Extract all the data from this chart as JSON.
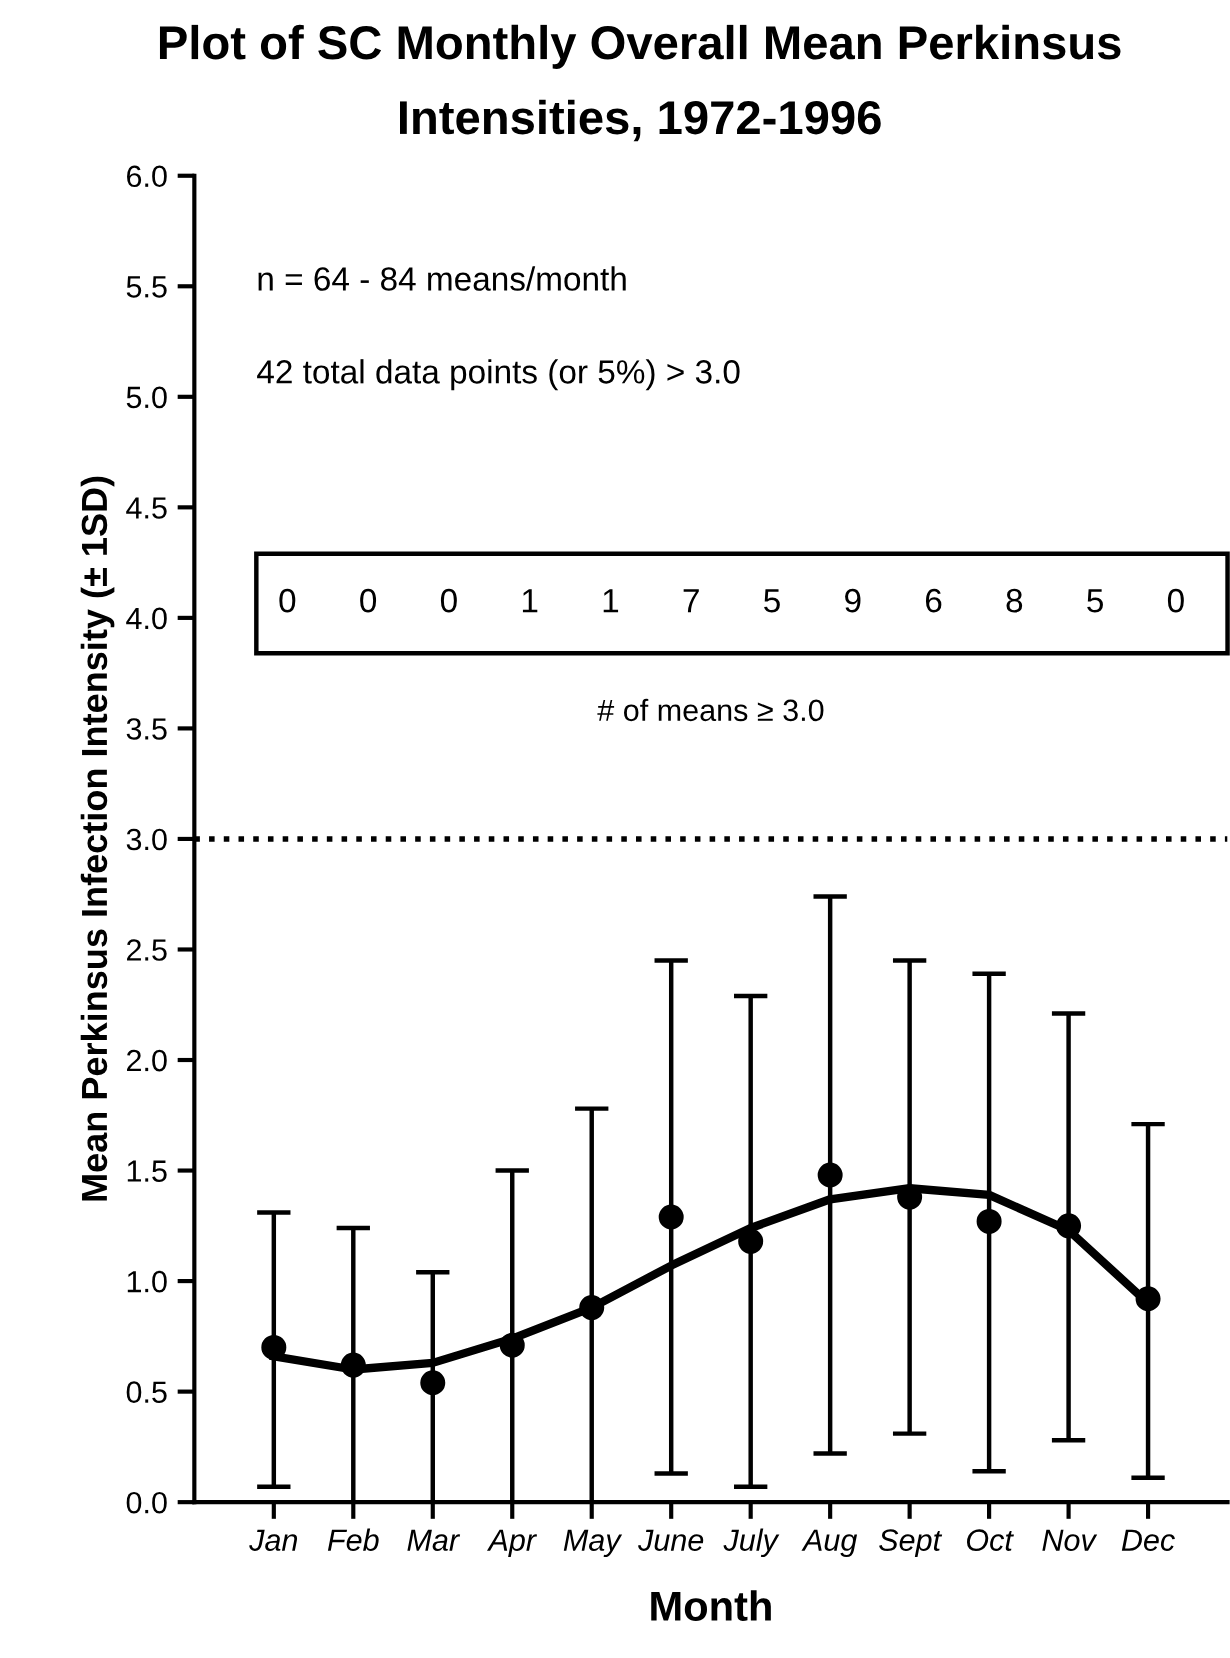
{
  "chart_data": {
    "type": "scatter",
    "title": "Plot of SC Monthly Overall Mean Perkinsus\nIntensities, 1972-1996",
    "xlabel": "Month",
    "ylabel": "Mean Perkinsus Infection Intensity (± 1SD)",
    "categories": [
      "Jan",
      "Feb",
      "Mar",
      "Apr",
      "May",
      "June",
      "July",
      "Aug",
      "Sept",
      "Oct",
      "Nov",
      "Dec"
    ],
    "series": [
      {
        "color": "#000000",
        "marker": "circle",
        "values": [
          0.7,
          0.62,
          0.54,
          0.71,
          0.88,
          1.29,
          1.18,
          1.48,
          1.38,
          1.27,
          1.25,
          0.92
        ],
        "errors": [
          [
            0.07,
            1.31
          ],
          [
            0.0,
            1.24
          ],
          [
            0.0,
            1.04
          ],
          [
            0.0,
            1.5
          ],
          [
            0.0,
            1.78
          ],
          [
            0.13,
            2.45
          ],
          [
            0.07,
            2.29
          ],
          [
            0.22,
            2.74
          ],
          [
            0.31,
            2.45
          ],
          [
            0.14,
            2.39
          ],
          [
            0.28,
            2.21
          ],
          [
            0.11,
            1.71
          ]
        ]
      },
      {
        "type": "line",
        "color": "#000000",
        "marker": "none",
        "line_style": "solid",
        "values": [
          0.66,
          0.6,
          0.63,
          0.74,
          0.88,
          1.07,
          1.24,
          1.37,
          1.42,
          1.39,
          1.23,
          0.9
        ]
      }
    ],
    "ylim": [
      0,
      6.0
    ],
    "yticks": [
      {
        "value": 0,
        "label": "0.0"
      },
      {
        "value": 0.5,
        "label": "0.5"
      },
      {
        "value": 1,
        "label": "1.0"
      },
      {
        "value": 1.5,
        "label": "1.5"
      },
      {
        "value": 2,
        "label": "2.0"
      },
      {
        "value": 2.5,
        "label": "2.5"
      },
      {
        "value": 3,
        "label": "3.0"
      },
      {
        "value": 3.5,
        "label": "3.5"
      },
      {
        "value": 4,
        "label": "4.0"
      },
      {
        "value": 4.5,
        "label": "4.5"
      },
      {
        "value": 5,
        "label": "5.0"
      },
      {
        "value": 5.5,
        "label": "5.5"
      },
      {
        "value": 6,
        "label": "6.0"
      }
    ],
    "ref_lines": [
      {
        "axis": "y",
        "value": 3.0,
        "line_style": "dotted",
        "color": "#000000"
      }
    ],
    "annotations": [
      "n = 64 - 84 means/month",
      "42 total data points (or 5%) > 3.0",
      "0",
      "0",
      "0",
      "1",
      "1",
      "7",
      "5",
      "9",
      "6",
      "8",
      "5",
      "0",
      "# of means ≥ 3.0"
    ],
    "grid": false,
    "legend": false
  }
}
